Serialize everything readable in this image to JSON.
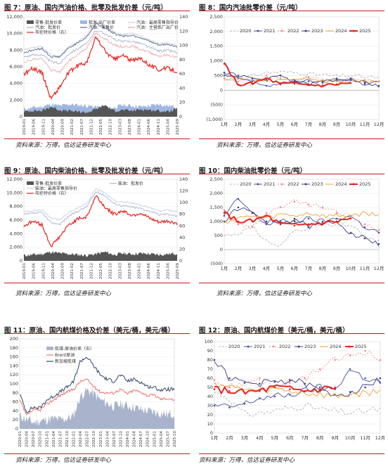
{
  "figures": [
    {
      "title": "图 7：原油、国内汽油价格、批零及批发价差（元/吨）",
      "source": "资料来源：万得，信达证券研发中心"
    },
    {
      "title": "图 8：国内汽油批零价差（元/吨）",
      "source": "资料来源：万得，信达证券研发中心"
    },
    {
      "title": "图 9：原油、国内柴油价格、批零及批发价差（元/吨）",
      "source": "资料来源：万得，信达证券研发中心"
    },
    {
      "title": "图 10：国内柴油批零价差（元/吨）",
      "source": "资料来源：万得，信达证券研发中心"
    },
    {
      "title": "图 11：原油、国内航煤价格及价差（美元/桶，美元/桶）",
      "source": "资料来源：万得，信达证券研发中心"
    },
    {
      "title": "图 12：原油、国内航煤价差（美元/桶，美元/桶）",
      "source": "资料来源：万得，信达证券研发中心"
    }
  ],
  "colors": {
    "accent": "#c7171a",
    "brent": "#e8231f",
    "retail": "#5b6b8c",
    "wholesale": "#a8b4d4",
    "spread_dark": "#555555",
    "spread_blue": "#9fb6e0"
  },
  "chart_data": [
    {
      "type": "area",
      "ylim": [
        0,
        12000
      ],
      "y2lim": [
        0,
        140
      ],
      "yticks": [
        "0",
        "2,000",
        "4,000",
        "6,000",
        "8,000",
        "10,000",
        "12,000"
      ],
      "y2ticks": [
        "0",
        "20",
        "40",
        "60",
        "80",
        "100",
        "120",
        "140"
      ],
      "xticks": [
        "2019-01",
        "2019-06",
        "2019-11",
        "2020-04",
        "2020-09",
        "2021-02",
        "2021-07",
        "2021-12",
        "2022-05",
        "2022-10",
        "2023-03",
        "2023-08",
        "2024-01",
        "2024-06",
        "2024-11",
        "2025-04",
        "2025-09"
      ],
      "series": [
        {
          "name": "零售-批发价差",
          "values": [
            600,
            750,
            700,
            1200,
            800,
            700,
            600,
            500,
            900,
            1400,
            700,
            800,
            700,
            900,
            800,
            700,
            600,
            1000
          ]
        },
        {
          "name": "批发-出厂价差",
          "values": [
            900,
            1100,
            1200,
            1500,
            1300,
            1500,
            1400,
            1300,
            1200,
            900,
            1100,
            1400,
            1300,
            1200,
            1300,
            1500,
            1300,
            1200
          ]
        },
        {
          "name": "汽油：批发价",
          "values": [
            7200,
            7400,
            7500,
            6600,
            6400,
            7600,
            8200,
            8800,
            10400,
            10000,
            9300,
            9000,
            9100,
            8800,
            8300,
            7900,
            8000,
            7700
          ]
        },
        {
          "name": "汽油：零售价",
          "values": [
            7700,
            8000,
            8200,
            7200,
            7200,
            8300,
            8900,
            9600,
            11200,
            10700,
            10000,
            9700,
            9800,
            9500,
            9000,
            8600,
            8700,
            8400
          ]
        },
        {
          "name": "汽油：最高零售指导价",
          "values": [
            8000,
            8300,
            8400,
            7400,
            7300,
            8400,
            9000,
            9800,
            11400,
            10900,
            10200,
            9900,
            10000,
            9700,
            9200,
            8800,
            8900,
            8600
          ]
        },
        {
          "name": "汽油：主营炼厂出厂价",
          "values": [
            6600,
            6900,
            7000,
            5600,
            5400,
            6700,
            7500,
            8300,
            10000,
            9400,
            8600,
            8400,
            8500,
            8100,
            7700,
            7300,
            7400,
            7100
          ]
        },
        {
          "name": "布伦特价格（右）",
          "values": [
            60,
            68,
            62,
            25,
            42,
            62,
            72,
            76,
            112,
            92,
            80,
            86,
            78,
            82,
            72,
            66,
            68,
            64
          ]
        }
      ]
    },
    {
      "type": "line",
      "ylim": [
        -1000,
        2500
      ],
      "yticks": [
        "(1,000)",
        "(500)",
        "0",
        "500",
        "1,000",
        "1,500",
        "2,000",
        "2,500"
      ],
      "xticks": [
        "1月",
        "2月",
        "3月",
        "4月",
        "5月",
        "6月",
        "7月",
        "8月",
        "9月",
        "10月",
        "11月",
        "12月"
      ],
      "series": [
        {
          "name": "2020",
          "values": [
            500,
            450,
            480,
            600,
            620,
            600,
            560,
            520,
            480,
            500,
            450,
            420
          ]
        },
        {
          "name": "2021",
          "values": [
            500,
            400,
            300,
            150,
            200,
            350,
            300,
            250,
            400,
            350,
            200,
            300
          ]
        },
        {
          "name": "2022",
          "values": [
            400,
            300,
            200,
            500,
            400,
            300,
            450,
            350,
            300,
            400,
            350,
            300
          ]
        },
        {
          "name": "2023",
          "values": [
            600,
            500,
            400,
            350,
            500,
            300,
            200,
            300,
            350,
            400,
            250,
            150
          ]
        },
        {
          "name": "2024",
          "values": [
            400,
            380,
            360,
            300,
            340,
            380,
            420,
            300,
            280,
            320,
            300,
            280
          ]
        },
        {
          "name": "2025",
          "values": [
            900,
            180,
            220,
            400,
            200,
            220,
            180,
            160,
            200,
            240
          ]
        }
      ]
    },
    {
      "type": "area",
      "ylim": [
        0,
        12000
      ],
      "y2lim": [
        0,
        140
      ],
      "yticks": [
        "0",
        "2,000",
        "4,000",
        "6,000",
        "8,000",
        "10,000",
        "12,000"
      ],
      "y2ticks": [
        "0",
        "20",
        "40",
        "60",
        "80",
        "100",
        "120",
        "140"
      ],
      "xticks": [
        "2019-01",
        "2019-06",
        "2019-11",
        "2020-04",
        "2020-09",
        "2021-02",
        "2021-07",
        "2021-12",
        "2022-05",
        "2022-10",
        "2023-03",
        "2023-08",
        "2024-01",
        "2024-06",
        "2024-11",
        "2025-04",
        "2025-09"
      ],
      "series": [
        {
          "name": "零售-批发价差",
          "values": [
            800,
            900,
            1000,
            1300,
            1100,
            1000,
            900,
            800,
            1000,
            1300,
            900,
            1100,
            1000,
            1100,
            1000,
            900,
            1000,
            1100
          ]
        },
        {
          "name": "柴油：批发价",
          "values": [
            6800,
            7000,
            7100,
            5600,
            5400,
            6600,
            7300,
            8000,
            10200,
            9600,
            8400,
            8100,
            7900,
            7700,
            7300,
            6800,
            6900,
            6600
          ]
        },
        {
          "name": "柴油：最高零售指导价",
          "values": [
            7200,
            7400,
            7500,
            6300,
            6100,
            7100,
            7800,
            8500,
            10600,
            10000,
            8900,
            8600,
            8500,
            8200,
            7800,
            7400,
            7500,
            7200
          ]
        },
        {
          "name": "布伦特价格（右）",
          "values": [
            60,
            68,
            62,
            25,
            42,
            62,
            72,
            76,
            112,
            92,
            80,
            86,
            78,
            82,
            72,
            66,
            68,
            64
          ]
        }
      ]
    },
    {
      "type": "line",
      "ylim": [
        -500,
        2500
      ],
      "yticks": [
        "(500)",
        "0",
        "500",
        "1,000",
        "1,500",
        "2,000",
        "2,500"
      ],
      "xticks": [
        "1月",
        "2月",
        "3月",
        "4月",
        "5月",
        "6月",
        "7月",
        "8月",
        "9月",
        "10月",
        "11月",
        "12月"
      ],
      "series": [
        {
          "name": "2020",
          "values": [
            500,
            600,
            800,
            300,
            100,
            700,
            800,
            900,
            800,
            900,
            400,
            300
          ]
        },
        {
          "name": "2021",
          "values": [
            1200,
            1800,
            1300,
            900,
            1000,
            1000,
            1100,
            1000,
            1100,
            1200,
            800,
            600
          ]
        },
        {
          "name": "2022",
          "values": [
            1400,
            900,
            800,
            1300,
            1500,
            1700,
            1600,
            1500,
            1300,
            1200,
            900,
            700
          ]
        },
        {
          "name": "2023",
          "values": [
            1000,
            1500,
            1300,
            1000,
            900,
            1100,
            800,
            900,
            1000,
            600,
            400,
            200
          ]
        },
        {
          "name": "2024",
          "values": [
            1000,
            1100,
            1200,
            1100,
            1250,
            1200,
            1300,
            1200,
            1200,
            1200,
            1300,
            1200
          ]
        },
        {
          "name": "2025",
          "values": [
            1300,
            1000,
            1000,
            1200,
            900,
            850,
            900,
            950,
            1000,
            1100
          ]
        }
      ]
    },
    {
      "type": "area",
      "ylim": [
        0,
        200
      ],
      "y2lim": [
        0,
        140
      ],
      "yticks": [
        "0",
        "20",
        "40",
        "60",
        "80",
        "100",
        "120",
        "140",
        "160",
        "180",
        "200"
      ],
      "xticks": [
        "2020-01",
        "2020-04",
        "2020-07",
        "2020-10",
        "2021-01",
        "2021-04",
        "2021-07",
        "2021-10",
        "2022-01",
        "2022-04",
        "2022-07",
        "2022-10",
        "2023-01",
        "2023-04",
        "2023-07",
        "2023-10",
        "2024-01",
        "2024-04",
        "2024-07",
        "2024-10",
        "2025-01",
        "2025-04",
        "2025-07",
        "2025-10"
      ],
      "series": [
        {
          "name": "航煤-原油价差（右）",
          "values": [
            20,
            15,
            10,
            12,
            14,
            16,
            14,
            16,
            20,
            50,
            60,
            55,
            45,
            40,
            35,
            38,
            36,
            34,
            30,
            28,
            26,
            24,
            22,
            24
          ]
        },
        {
          "name": "Brent原油",
          "values": [
            64,
            30,
            42,
            41,
            55,
            64,
            74,
            82,
            88,
            105,
            110,
            94,
            82,
            80,
            80,
            88,
            78,
            86,
            82,
            74,
            75,
            66,
            68,
            64
          ]
        },
        {
          "name": "新加坡航煤",
          "values": [
            78,
            38,
            48,
            46,
            64,
            72,
            82,
            92,
            104,
            150,
            160,
            140,
            120,
            110,
            106,
            120,
            106,
            110,
            104,
            94,
            92,
            86,
            88,
            88
          ]
        }
      ]
    },
    {
      "type": "line",
      "ylim": [
        0,
        100
      ],
      "yticks": [
        "0",
        "10",
        "20",
        "30",
        "40",
        "50",
        "60",
        "70",
        "80",
        "90",
        "100"
      ],
      "xticks": [
        "1月",
        "2月",
        "3月",
        "4月",
        "5月",
        "6月",
        "7月",
        "8月",
        "9月",
        "10月",
        "11月",
        "12月"
      ],
      "series": [
        {
          "name": "2020",
          "values": [
            45,
            38,
            20,
            22,
            24,
            28,
            30,
            26,
            24,
            22,
            24,
            26
          ]
        },
        {
          "name": "2021",
          "values": [
            30,
            28,
            32,
            38,
            40,
            42,
            46,
            50,
            48,
            70,
            60,
            55
          ]
        },
        {
          "name": "2022",
          "values": [
            58,
            50,
            55,
            60,
            50,
            55,
            60,
            70,
            80,
            85,
            90,
            80
          ]
        },
        {
          "name": "2023",
          "values": [
            80,
            60,
            55,
            54,
            56,
            58,
            54,
            46,
            42,
            45,
            50,
            60
          ]
        },
        {
          "name": "2024",
          "values": [
            55,
            50,
            48,
            46,
            48,
            46,
            44,
            42,
            40,
            42,
            44,
            45
          ]
        },
        {
          "name": "2025",
          "values": [
            48,
            46,
            44,
            46,
            50,
            48,
            46,
            48,
            50
          ]
        }
      ]
    }
  ]
}
